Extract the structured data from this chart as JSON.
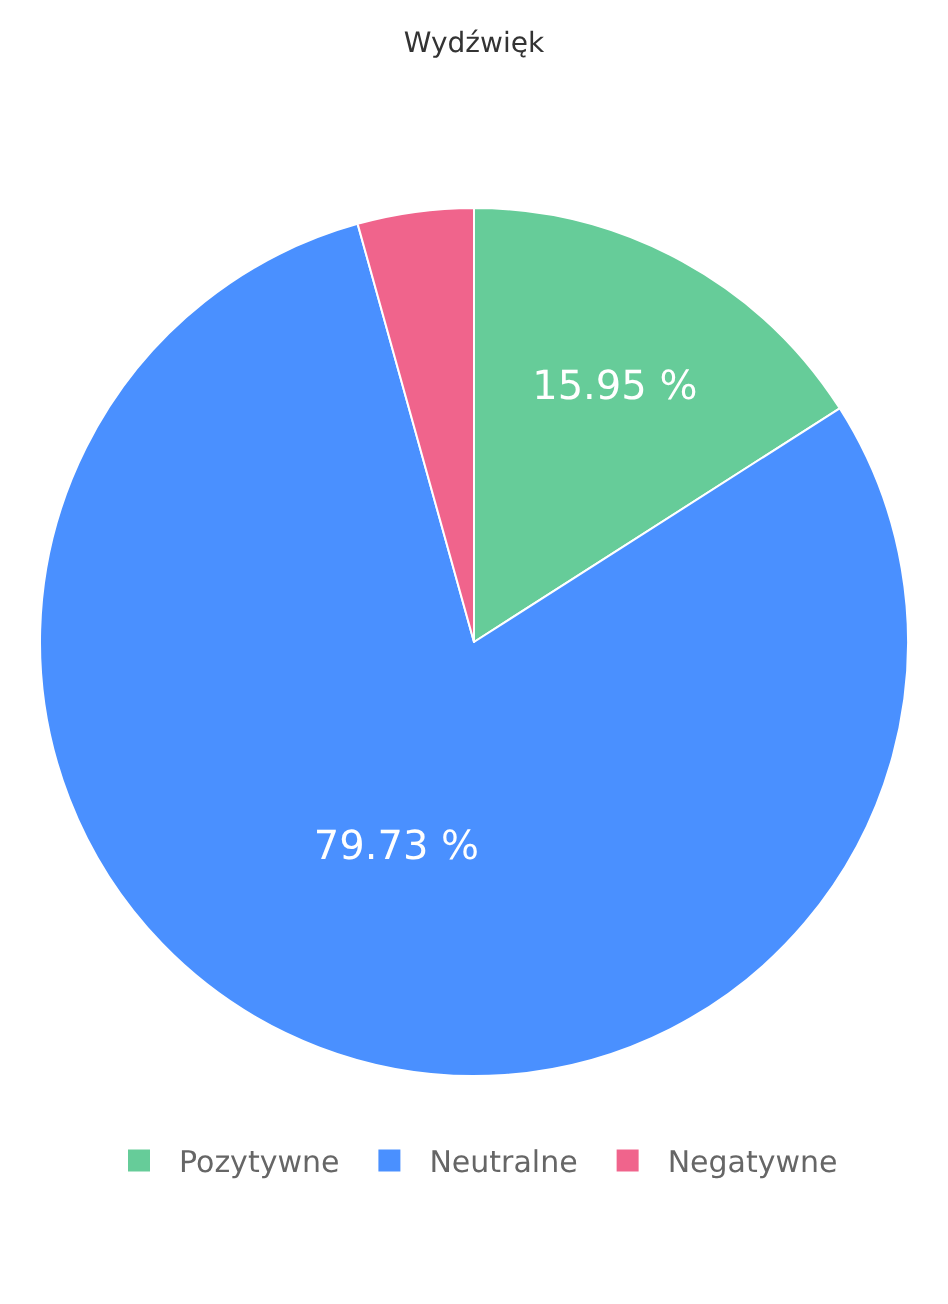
{
  "chart_data": {
    "type": "pie",
    "title": "Wydźwięk",
    "categories": [
      "Pozytywne",
      "Neutralne",
      "Negatywne"
    ],
    "values": [
      15.95,
      79.73,
      4.32
    ],
    "colors": [
      "#66cc99",
      "#4a90ff",
      "#f0648c"
    ],
    "value_labels": [
      "15.95 %",
      "79.73 %",
      null
    ],
    "legend": "bottom"
  }
}
